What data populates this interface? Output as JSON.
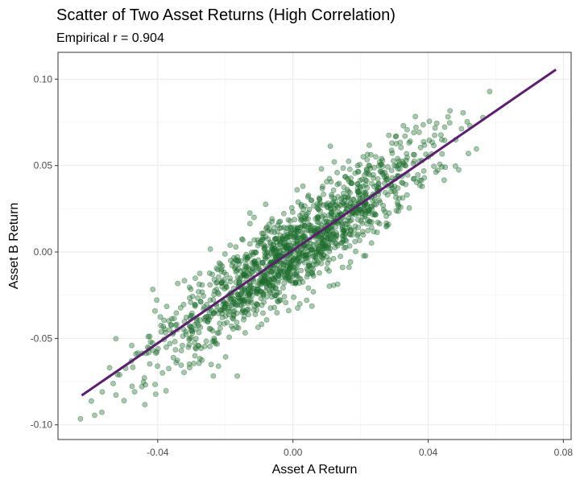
{
  "chart_data": {
    "type": "scatter",
    "title": "Scatter of Two Asset Returns (High Correlation)",
    "subtitle": "Empirical r = 0.904",
    "xlabel": "Asset A Return",
    "ylabel": "Asset B Return",
    "xlim": [
      -0.0695,
      0.0823
    ],
    "ylim": [
      -0.1085,
      0.1155
    ],
    "x_ticks": [
      {
        "value": -0.04,
        "label": "-0.04"
      },
      {
        "value": 0.0,
        "label": "0.00"
      },
      {
        "value": 0.04,
        "label": "0.04"
      },
      {
        "value": 0.08,
        "label": "0.08"
      }
    ],
    "y_ticks": [
      {
        "value": -0.1,
        "label": "-0.10"
      },
      {
        "value": -0.05,
        "label": "-0.05"
      },
      {
        "value": 0.0,
        "label": "0.00"
      },
      {
        "value": 0.05,
        "label": "0.05"
      },
      {
        "value": 0.1,
        "label": "0.10"
      }
    ],
    "grid": true,
    "point_color": "#1e6b2e",
    "line_color": "#5b1f6e",
    "trend_line": {
      "x": [
        -0.0625,
        0.0778
      ],
      "y": [
        -0.083,
        0.1055
      ]
    },
    "n_points": 1500
  }
}
